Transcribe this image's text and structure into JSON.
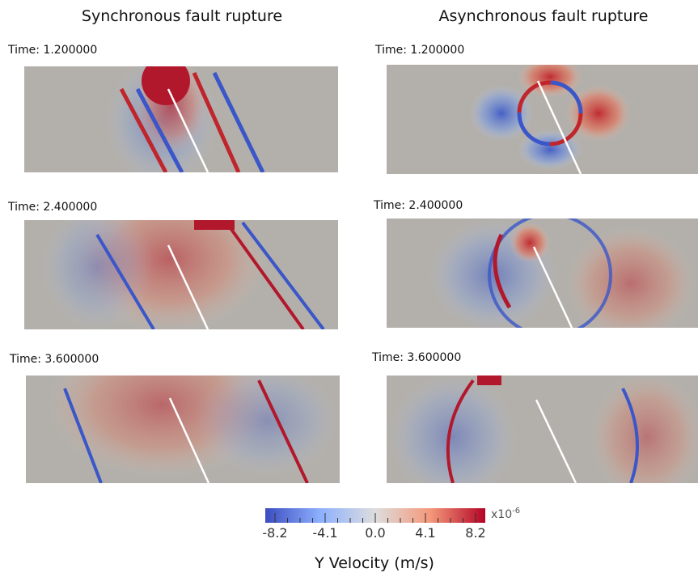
{
  "columns": [
    {
      "title": "Synchronous fault rupture",
      "panels": [
        {
          "time": "Time: 1.200000"
        },
        {
          "time": "Time: 2.400000"
        },
        {
          "time": "Time: 3.600000"
        }
      ]
    },
    {
      "title": "Asynchronous fault rupture",
      "panels": [
        {
          "time": "Time: 1.200000"
        },
        {
          "time": "Time: 2.400000"
        },
        {
          "time": "Time: 3.600000"
        }
      ]
    }
  ],
  "colorbar": {
    "ticks": [
      "-8.2",
      "-4.1",
      "0.0",
      "4.1",
      "8.2"
    ],
    "multiplier": "x10",
    "exponent": "-6",
    "label": "Y Velocity (m/s)"
  }
}
